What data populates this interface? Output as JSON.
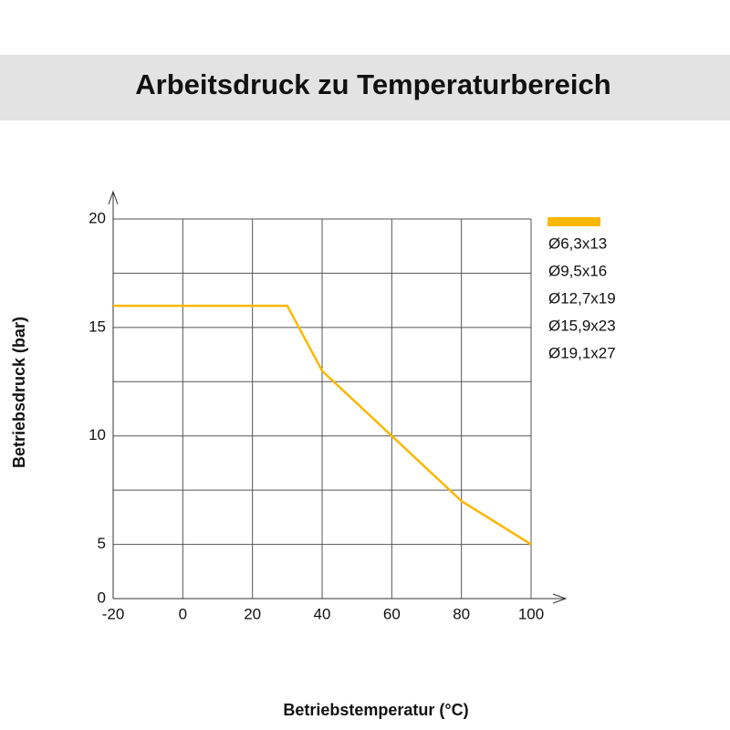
{
  "chart_data": {
    "type": "line",
    "title": "Arbeitsdruck zu Temperaturbereich",
    "x_label": "Betriebstemperatur (°C)",
    "y_label": "Betriebsdruck (bar)",
    "x": [
      -20,
      30,
      40,
      60,
      80,
      100
    ],
    "series": [
      {
        "color": "#fbb800",
        "values": [
          16,
          16,
          13,
          10,
          7,
          5
        ]
      }
    ],
    "legend_labels": [
      "Ø6,3x13",
      "Ø9,5x16",
      "Ø12,7x19",
      "Ø15,9x23",
      "Ø19,1x27"
    ],
    "xlim": [
      -20,
      100
    ],
    "xticks": [
      -20,
      0,
      20,
      40,
      60,
      80,
      100
    ],
    "ylim": [
      0,
      20
    ],
    "yticks": [
      0,
      5,
      10,
      15,
      20
    ],
    "yminor_ticks": [
      7.5,
      12.5,
      17.5
    ],
    "grid": true
  }
}
